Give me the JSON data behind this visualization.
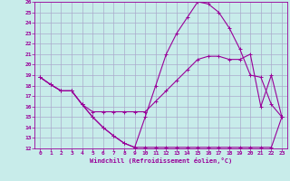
{
  "background_color": "#c8ecea",
  "grid_color": "#aaaacc",
  "line_color": "#990099",
  "marker": "+",
  "xlabel": "Windchill (Refroidissement éolien,°C)",
  "xlim": [
    -0.5,
    23.5
  ],
  "ylim": [
    12,
    26
  ],
  "yticks": [
    12,
    13,
    14,
    15,
    16,
    17,
    18,
    19,
    20,
    21,
    22,
    23,
    24,
    25,
    26
  ],
  "xticks": [
    0,
    1,
    2,
    3,
    4,
    5,
    6,
    7,
    8,
    9,
    10,
    11,
    12,
    13,
    14,
    15,
    16,
    17,
    18,
    19,
    20,
    21,
    22,
    23
  ],
  "series": [
    {
      "x": [
        0,
        1,
        2,
        3,
        4,
        5,
        6,
        7,
        8,
        9,
        10,
        11,
        12,
        13,
        14,
        15,
        16,
        17,
        18,
        19,
        20,
        21,
        22,
        23
      ],
      "y": [
        18.8,
        18.1,
        17.5,
        17.5,
        16.2,
        15.0,
        14.0,
        13.2,
        12.5,
        12.1,
        12.1,
        12.1,
        12.1,
        12.1,
        12.1,
        12.1,
        12.1,
        12.1,
        12.1,
        12.1,
        12.1,
        12.1,
        12.1,
        15.0
      ]
    },
    {
      "x": [
        0,
        1,
        2,
        3,
        4,
        5,
        6,
        7,
        8,
        9,
        10,
        11,
        12,
        13,
        14,
        15,
        16,
        17,
        18,
        19,
        20,
        21,
        22,
        23
      ],
      "y": [
        18.8,
        18.1,
        17.5,
        17.5,
        16.2,
        15.0,
        14.0,
        13.2,
        12.5,
        12.1,
        15.0,
        18.0,
        21.0,
        23.0,
        24.5,
        26.0,
        25.8,
        25.0,
        23.5,
        21.5,
        19.0,
        18.8,
        16.2,
        15.0
      ]
    },
    {
      "x": [
        0,
        1,
        2,
        3,
        4,
        5,
        6,
        7,
        8,
        9,
        10,
        11,
        12,
        13,
        14,
        15,
        16,
        17,
        18,
        19,
        20,
        21,
        22,
        23
      ],
      "y": [
        18.8,
        18.1,
        17.5,
        17.5,
        16.2,
        15.5,
        15.5,
        15.5,
        15.5,
        15.5,
        15.5,
        16.5,
        17.5,
        18.5,
        19.5,
        20.5,
        20.8,
        20.8,
        20.5,
        20.5,
        21.0,
        16.0,
        19.0,
        15.0
      ]
    }
  ]
}
